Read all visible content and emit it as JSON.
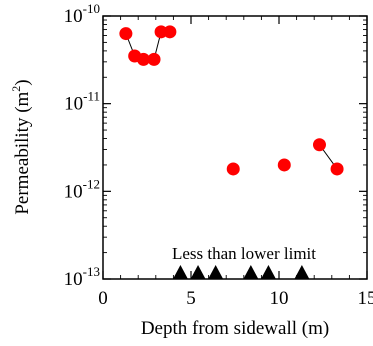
{
  "chart_data": {
    "type": "scatter",
    "xlabel": "Depth from sidewall (m)",
    "ylabel_main": "Permeability (m",
    "ylabel_sup": "2",
    "ylabel_close": ")",
    "xlim": [
      0,
      15
    ],
    "ylim": [
      1e-13,
      1e-10
    ],
    "yscale": "log",
    "x_ticks": [
      {
        "value": 0,
        "label": "0"
      },
      {
        "value": 5,
        "label": "5"
      },
      {
        "value": 10,
        "label": "10"
      },
      {
        "value": 15,
        "label": "15"
      }
    ],
    "y_ticks": [
      {
        "exp": -10,
        "base": "10",
        "sup": "-10"
      },
      {
        "exp": -11,
        "base": "10",
        "sup": "-11"
      },
      {
        "exp": -12,
        "base": "10",
        "sup": "-12"
      },
      {
        "exp": -13,
        "base": "10",
        "sup": "-13"
      }
    ],
    "annotation": "Less than lower limit",
    "grid": false,
    "series": [
      {
        "marker": "circle",
        "color": "#ff0000",
        "points": [
          {
            "x": 1.3,
            "y": 6.3e-11
          },
          {
            "x": 1.8,
            "y": 3.5e-11
          },
          {
            "x": 2.3,
            "y": 3.2e-11
          },
          {
            "x": 2.9,
            "y": 3.2e-11
          },
          {
            "x": 3.3,
            "y": 6.6e-11
          },
          {
            "x": 3.8,
            "y": 6.6e-11
          },
          {
            "x": 7.4,
            "y": 1.8e-12
          },
          {
            "x": 10.3,
            "y": 2e-12
          },
          {
            "x": 12.3,
            "y": 3.4e-12
          },
          {
            "x": 13.3,
            "y": 1.8e-12
          }
        ],
        "connections": [
          [
            0,
            1
          ],
          [
            1,
            2
          ],
          [
            3,
            4
          ],
          [
            4,
            5
          ],
          [
            8,
            9
          ]
        ]
      },
      {
        "marker": "triangle",
        "color": "#000000",
        "points": [
          {
            "x": 4.4,
            "y": 1e-13
          },
          {
            "x": 5.4,
            "y": 1e-13
          },
          {
            "x": 6.4,
            "y": 1e-13
          },
          {
            "x": 8.4,
            "y": 1e-13
          },
          {
            "x": 9.4,
            "y": 1e-13
          },
          {
            "x": 11.3,
            "y": 1e-13
          }
        ]
      }
    ]
  }
}
